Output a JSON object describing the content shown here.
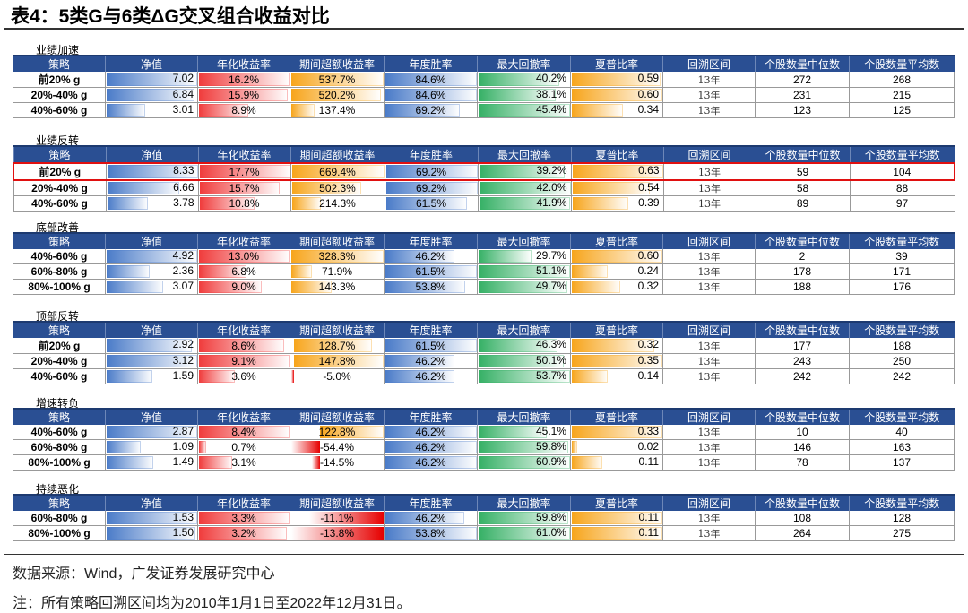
{
  "title": "表4：5类G与6类ΔG交叉组合收益对比",
  "headers": [
    "策略",
    "净值",
    "年化收益率",
    "期间超额收益率",
    "年度胜率",
    "最大回撤率",
    "夏普比率",
    "回溯区间",
    "个股数量中位数",
    "个股数量平均数"
  ],
  "colors": {
    "header": "#2a4f93",
    "nav": "#4a7bc8",
    "annual": "#f03c3c",
    "excess": "#f7a51c",
    "excess_negative": "#e60000",
    "win": "#4a7bc8",
    "drawdown": "#35b065",
    "sharpe": "#f7a51c",
    "highlight": "#e01010"
  },
  "sections": [
    {
      "label": "业绩加速",
      "rows": [
        [
          "前20% g",
          "7.02",
          "16.2%",
          "537.7%",
          "84.6%",
          "40.2%",
          "0.59",
          "13年",
          "272",
          "268"
        ],
        [
          "20%-40% g",
          "6.84",
          "15.9%",
          "520.2%",
          "84.6%",
          "38.1%",
          "0.60",
          "13年",
          "231",
          "215"
        ],
        [
          "40%-60% g",
          "3.01",
          "8.9%",
          "137.4%",
          "69.2%",
          "45.4%",
          "0.34",
          "13年",
          "123",
          "125"
        ]
      ]
    },
    {
      "label": "业绩反转",
      "highlight_row": 0,
      "rows": [
        [
          "前20% g",
          "8.33",
          "17.7%",
          "669.4%",
          "69.2%",
          "39.2%",
          "0.63",
          "13年",
          "59",
          "104"
        ],
        [
          "20%-40% g",
          "6.66",
          "15.7%",
          "502.3%",
          "69.2%",
          "42.0%",
          "0.54",
          "13年",
          "58",
          "88"
        ],
        [
          "40%-60% g",
          "3.78",
          "10.8%",
          "214.3%",
          "61.5%",
          "41.9%",
          "0.39",
          "13年",
          "89",
          "97"
        ]
      ]
    },
    {
      "label": "底部改善",
      "rows": [
        [
          "40%-60% g",
          "4.92",
          "13.0%",
          "328.3%",
          "46.2%",
          "29.7%",
          "0.60",
          "13年",
          "2",
          "39"
        ],
        [
          "60%-80% g",
          "2.36",
          "6.8%",
          "71.9%",
          "61.5%",
          "51.1%",
          "0.24",
          "13年",
          "178",
          "171"
        ],
        [
          "80%-100% g",
          "3.07",
          "9.0%",
          "143.3%",
          "53.8%",
          "49.7%",
          "0.32",
          "13年",
          "188",
          "176"
        ]
      ]
    },
    {
      "label": "顶部反转",
      "rows": [
        [
          "前20% g",
          "2.92",
          "8.6%",
          "128.7%",
          "61.5%",
          "46.3%",
          "0.32",
          "13年",
          "177",
          "188"
        ],
        [
          "20%-40% g",
          "3.12",
          "9.1%",
          "147.8%",
          "46.2%",
          "50.1%",
          "0.35",
          "13年",
          "243",
          "250"
        ],
        [
          "40%-60% g",
          "1.59",
          "3.6%",
          "-5.0%",
          "46.2%",
          "53.7%",
          "0.14",
          "13年",
          "242",
          "242"
        ]
      ]
    },
    {
      "label": "增速转负",
      "rows": [
        [
          "40%-60% g",
          "2.87",
          "8.4%",
          "122.8%",
          "46.2%",
          "45.1%",
          "0.33",
          "13年",
          "10",
          "40"
        ],
        [
          "60%-80% g",
          "1.09",
          "0.7%",
          "-54.4%",
          "46.2%",
          "59.8%",
          "0.02",
          "13年",
          "146",
          "163"
        ],
        [
          "80%-100% g",
          "1.49",
          "3.1%",
          "-14.5%",
          "46.2%",
          "60.9%",
          "0.11",
          "13年",
          "78",
          "137"
        ]
      ]
    },
    {
      "label": "持续恶化",
      "rows": [
        [
          "60%-80% g",
          "1.53",
          "3.3%",
          "-11.1%",
          "46.2%",
          "59.8%",
          "0.11",
          "13年",
          "108",
          "128"
        ],
        [
          "80%-100% g",
          "1.50",
          "3.2%",
          "-13.8%",
          "53.8%",
          "61.0%",
          "0.11",
          "13年",
          "264",
          "275"
        ]
      ]
    }
  ],
  "footer": {
    "source": "数据来源：Wind，广发证券发展研究中心",
    "note": "注：所有策略回溯区间均为2010年1月1日至2022年12月31日。"
  }
}
